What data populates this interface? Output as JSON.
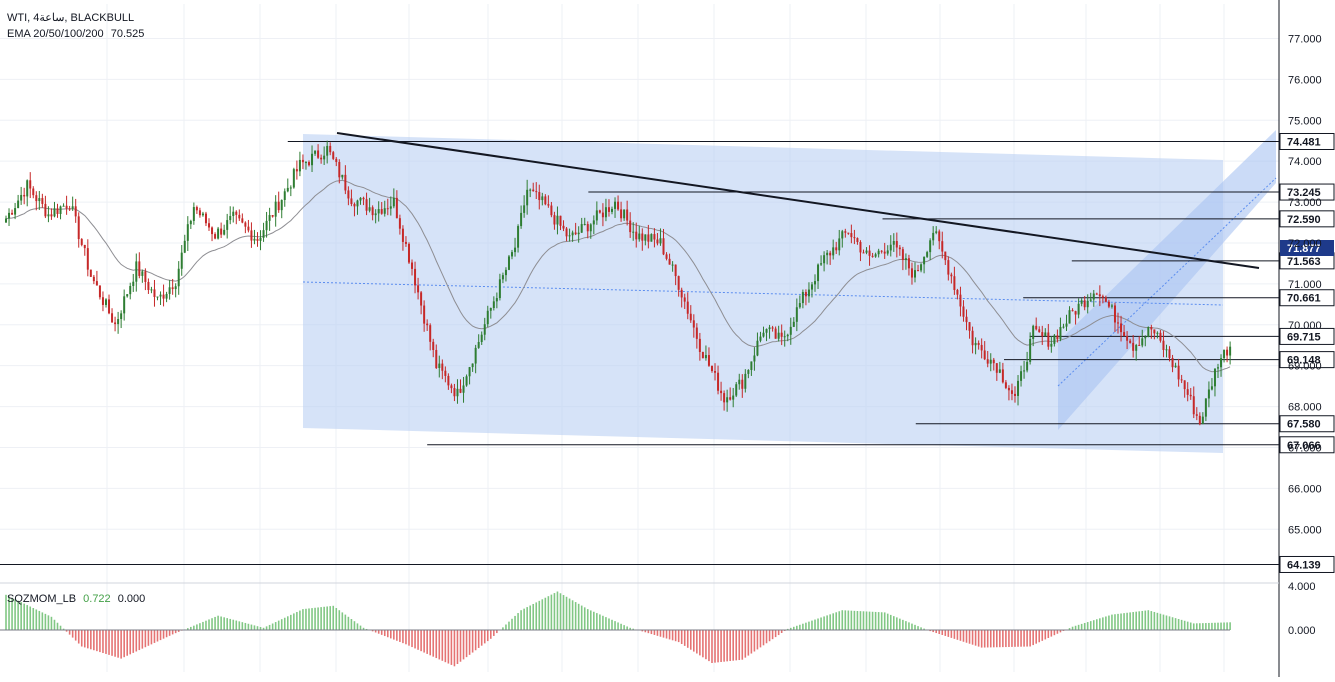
{
  "header": {
    "symbol_line": "WTI, 4ساعة, BLACKBULL",
    "ema_label": "EMA 20/50/100/200",
    "ema_value": "70.525",
    "osc_label": "SQZMOM_LB",
    "osc_value1": "0.722",
    "osc_value2": "0.000"
  },
  "colors": {
    "up": "#26a69a",
    "up_body": "#2e7d32",
    "down": "#c62828",
    "channel": "#bbd0f3",
    "trendline": "#131722",
    "level_line": "#131722",
    "price_tag_bg": "#1e3a8a",
    "hist_pos": "#81c784",
    "hist_neg": "#e57373"
  },
  "chart_data": {
    "type": "candlestick",
    "instrument": "WTI",
    "timeframe": "4ساعة",
    "broker": "BLACKBULL",
    "ylim": [
      64.1,
      77.7
    ],
    "y_ticks": [
      "77.000",
      "76.000",
      "75.000",
      "74.000",
      "73.000",
      "72.000",
      "71.000",
      "70.000",
      "69.000",
      "68.000",
      "67.000",
      "66.000",
      "65.000"
    ],
    "tick_values": [
      77,
      76,
      75,
      74,
      73,
      72,
      71,
      70,
      69,
      68,
      67,
      66,
      65
    ],
    "osc_ticks": [
      "4.000",
      "0.000"
    ],
    "osc_tick_values": [
      4,
      0
    ],
    "current_price": "71.877",
    "current_value": 71.877,
    "levels": [
      {
        "label": "74.481",
        "value": 74.481,
        "start": 0.225
      },
      {
        "label": "73.245",
        "value": 73.245,
        "start": 0.46
      },
      {
        "label": "72.590",
        "value": 72.59,
        "start": 0.69
      },
      {
        "label": "71.563",
        "value": 71.563,
        "start": 0.838
      },
      {
        "label": "70.661",
        "value": 70.661,
        "start": 0.8
      },
      {
        "label": "69.715",
        "value": 69.715,
        "start": 0.805
      },
      {
        "label": "69.148",
        "value": 69.148,
        "start": 0.785
      },
      {
        "label": "67.580",
        "value": 67.58,
        "start": 0.716
      },
      {
        "label": "67.066",
        "value": 67.066,
        "start": 0.334
      },
      {
        "label": "64.139",
        "value": 64.139,
        "start": 0.0
      }
    ],
    "anchors": [
      [
        0,
        72.6
      ],
      [
        7,
        73.4
      ],
      [
        14,
        72.7
      ],
      [
        21,
        73.0
      ],
      [
        28,
        71.2
      ],
      [
        36,
        70.0
      ],
      [
        43,
        71.4
      ],
      [
        50,
        70.6
      ],
      [
        56,
        71.1
      ],
      [
        62,
        72.9
      ],
      [
        69,
        72.2
      ],
      [
        75,
        72.6
      ],
      [
        83,
        72.1
      ],
      [
        91,
        73.1
      ],
      [
        97,
        73.9
      ],
      [
        106,
        74.3
      ],
      [
        114,
        73.1
      ],
      [
        122,
        72.8
      ],
      [
        128,
        73.0
      ],
      [
        134,
        71.4
      ],
      [
        142,
        69.0
      ],
      [
        149,
        68.3
      ],
      [
        155,
        69.4
      ],
      [
        161,
        70.6
      ],
      [
        168,
        71.9
      ],
      [
        172,
        73.3
      ],
      [
        178,
        72.9
      ],
      [
        186,
        72.1
      ],
      [
        193,
        72.5
      ],
      [
        201,
        73.0
      ],
      [
        208,
        72.2
      ],
      [
        216,
        72.0
      ],
      [
        222,
        71.0
      ],
      [
        229,
        69.5
      ],
      [
        237,
        68.2
      ],
      [
        243,
        68.6
      ],
      [
        250,
        69.9
      ],
      [
        256,
        69.6
      ],
      [
        262,
        70.5
      ],
      [
        270,
        71.6
      ],
      [
        278,
        72.3
      ],
      [
        285,
        71.6
      ],
      [
        292,
        72.0
      ],
      [
        300,
        71.2
      ],
      [
        306,
        72.3
      ],
      [
        312,
        71.2
      ],
      [
        319,
        69.6
      ],
      [
        327,
        69.0
      ],
      [
        333,
        68.2
      ],
      [
        339,
        69.8
      ],
      [
        345,
        69.6
      ],
      [
        352,
        70.3
      ],
      [
        360,
        70.9
      ],
      [
        366,
        70.2
      ],
      [
        372,
        69.5
      ],
      [
        378,
        69.9
      ],
      [
        384,
        69.2
      ],
      [
        390,
        68.3
      ],
      [
        394,
        67.6
      ],
      [
        400,
        69.1
      ],
      [
        404,
        69.5
      ]
    ],
    "osc_anchors": [
      [
        0,
        3.2
      ],
      [
        15,
        1.2
      ],
      [
        25,
        -1.5
      ],
      [
        38,
        -2.6
      ],
      [
        55,
        -0.4
      ],
      [
        70,
        1.3
      ],
      [
        85,
        0.2
      ],
      [
        98,
        1.9
      ],
      [
        108,
        2.2
      ],
      [
        118,
        0.2
      ],
      [
        132,
        -1.3
      ],
      [
        148,
        -3.3
      ],
      [
        160,
        -0.8
      ],
      [
        170,
        1.8
      ],
      [
        182,
        3.5
      ],
      [
        192,
        1.9
      ],
      [
        206,
        0.2
      ],
      [
        222,
        -1.1
      ],
      [
        233,
        -3.0
      ],
      [
        243,
        -2.7
      ],
      [
        258,
        0.1
      ],
      [
        276,
        1.8
      ],
      [
        290,
        1.6
      ],
      [
        305,
        -0.1
      ],
      [
        322,
        -1.6
      ],
      [
        338,
        -1.5
      ],
      [
        352,
        0.3
      ],
      [
        365,
        1.4
      ],
      [
        377,
        1.8
      ],
      [
        392,
        0.6
      ],
      [
        404,
        0.7
      ]
    ]
  }
}
